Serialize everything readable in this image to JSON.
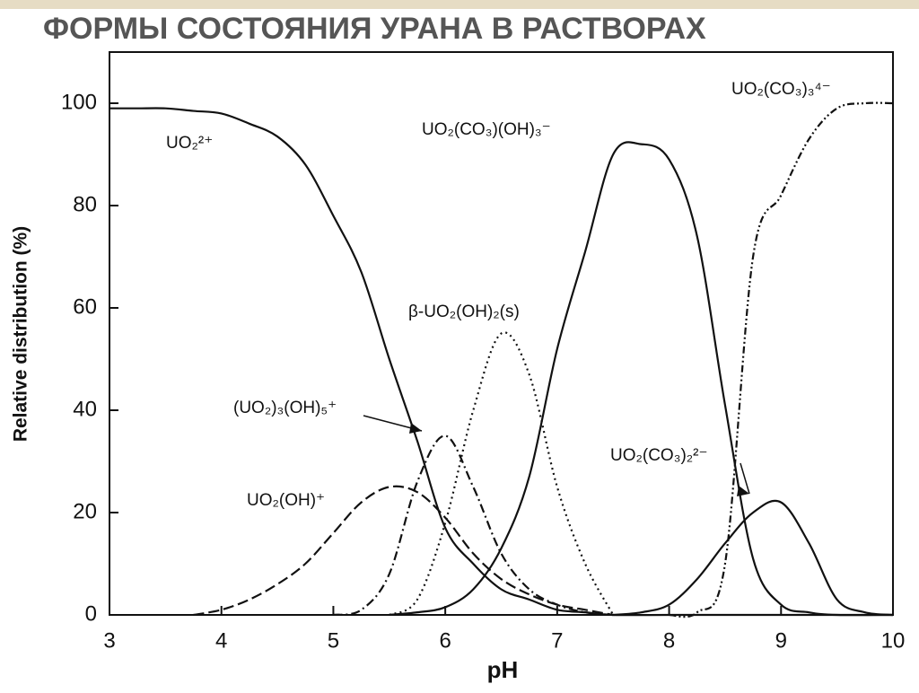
{
  "chart_data": {
    "type": "line",
    "title": "ФОРМЫ СОСТОЯНИЯ УРАНА В РАСТВОРАХ",
    "x_label": "pH",
    "y_label": "Relative distribution (%)",
    "xlim": [
      3,
      10
    ],
    "ylim": [
      0,
      110
    ],
    "xticks": [
      3,
      4,
      5,
      6,
      7,
      8,
      9,
      10
    ],
    "yticks": [
      0,
      20,
      40,
      60,
      80,
      100
    ],
    "series": [
      {
        "name": "UO₂²⁺",
        "color": "#111111",
        "x": [
          3,
          3.25,
          3.5,
          3.75,
          4,
          4.25,
          4.5,
          4.75,
          5,
          5.25,
          5.5,
          5.75,
          6,
          6.25,
          6.5,
          6.75,
          7,
          7.25,
          7.5,
          8,
          9,
          10
        ],
        "values": [
          99,
          99,
          99,
          98.5,
          98,
          96,
          93.5,
          88,
          78,
          67,
          50,
          34,
          17,
          10,
          5,
          3,
          1,
          0.5,
          0,
          0,
          0,
          0
        ]
      },
      {
        "name": "UO₂(CO₃)(OH)₃⁻",
        "color": "#111111",
        "x": [
          5.5,
          5.75,
          6,
          6.25,
          6.5,
          6.75,
          7,
          7.25,
          7.5,
          7.75,
          8,
          8.25,
          8.5,
          8.75,
          9,
          9.25,
          9.5,
          10
        ],
        "values": [
          0,
          0.5,
          1.5,
          5,
          13,
          27,
          52,
          71,
          90,
          92,
          89,
          74,
          41,
          11,
          2,
          0.5,
          0,
          0
        ]
      },
      {
        "name": "UO₂(CO₃)₃⁴⁻",
        "color": "#111111",
        "x": [
          8,
          8.25,
          8.5,
          8.75,
          9,
          9.25,
          9.5,
          9.75,
          10
        ],
        "values": [
          0,
          0.5,
          10,
          70,
          82,
          93,
          99,
          100,
          100
        ]
      },
      {
        "name": "β-UO₂(OH)₂(s)",
        "color": "#111111",
        "x": [
          5.5,
          5.75,
          6,
          6.25,
          6.5,
          6.75,
          7,
          7.25,
          7.5
        ],
        "values": [
          0,
          3,
          18,
          40,
          55,
          47,
          25,
          10,
          0
        ]
      },
      {
        "name": "(UO₂)₃(OH)₅⁺",
        "color": "#111111",
        "x": [
          5,
          5.25,
          5.5,
          5.75,
          6,
          6.25,
          6.5,
          6.75,
          7,
          7.25,
          7.5
        ],
        "values": [
          0,
          1,
          8,
          26,
          35,
          25,
          12,
          5,
          2,
          0.5,
          0
        ]
      },
      {
        "name": "UO₂(OH)⁺",
        "color": "#111111",
        "x": [
          3.75,
          4,
          4.25,
          4.5,
          4.75,
          5,
          5.25,
          5.5,
          5.75,
          6,
          6.25,
          6.5,
          6.75,
          7,
          7.25,
          7.5
        ],
        "values": [
          0,
          1,
          3,
          6,
          10,
          16,
          22,
          25,
          24,
          19,
          12,
          7,
          4,
          2,
          1,
          0
        ]
      },
      {
        "name": "UO₂(CO₃)₂²⁻",
        "color": "#111111",
        "x": [
          7.5,
          7.75,
          8,
          8.25,
          8.5,
          8.75,
          9,
          9.25,
          9.5,
          9.75,
          10
        ],
        "values": [
          0,
          0.5,
          2,
          7,
          14,
          20,
          22,
          14,
          3,
          0.5,
          0
        ]
      }
    ]
  }
}
